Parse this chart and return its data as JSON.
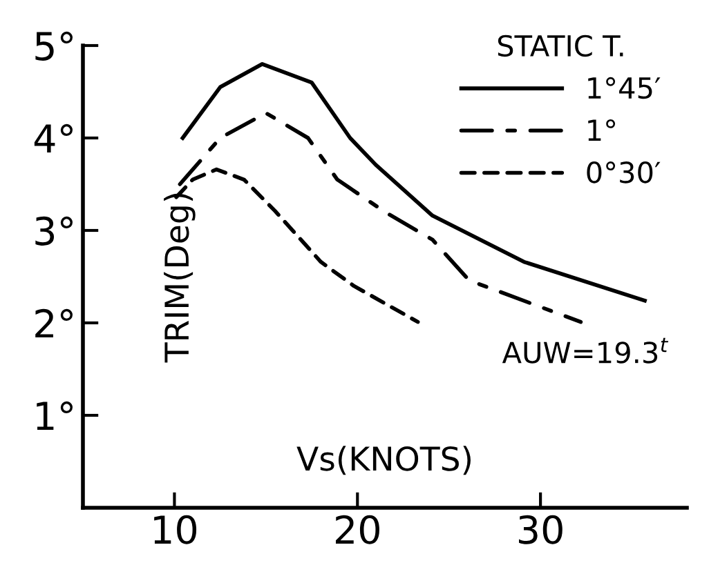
{
  "chart_data": {
    "type": "line",
    "xlabel": "Vs(KNOTS)",
    "ylabel": "TRIM(Deg)",
    "legend_title": "STATIC T.",
    "legend": "top right",
    "grid": false,
    "marker": "none",
    "xlim": [
      5,
      38
    ],
    "xticks": [
      10,
      20,
      30
    ],
    "ylim": [
      0,
      5
    ],
    "yticks": [
      {
        "value": 1,
        "label": "1°"
      },
      {
        "value": 2,
        "label": "2°"
      },
      {
        "value": 3,
        "label": "3°"
      },
      {
        "value": 4,
        "label": "4°"
      },
      {
        "value": 5,
        "label": "5°"
      }
    ],
    "series": [
      {
        "name": "1°45′",
        "color": "#000000",
        "line_style": "solid",
        "x": [
          10.45,
          12.5,
          14.8,
          17.5,
          19.6,
          21.0,
          24.1,
          29.1,
          35.7
        ],
        "values": [
          4.0,
          4.55,
          4.8,
          4.6,
          4.0,
          3.71,
          3.16,
          2.66,
          2.24
        ]
      },
      {
        "name": "1°",
        "color": "#000000",
        "line_style": "dashdot",
        "x": [
          10.3,
          12.5,
          15.0,
          17.3,
          18.9,
          21.5,
          24.1,
          26.1,
          32.2
        ],
        "values": [
          3.5,
          4.0,
          4.27,
          4.0,
          3.55,
          3.2,
          2.9,
          2.46,
          2.01
        ]
      },
      {
        "name": "0°30′",
        "color": "#000000",
        "line_style": "dashed",
        "x": [
          10.1,
          11.0,
          12.3,
          13.8,
          15.5,
          18.0,
          19.8,
          23.3
        ],
        "values": [
          3.36,
          3.55,
          3.66,
          3.55,
          3.21,
          2.66,
          2.4,
          2.01
        ]
      }
    ],
    "annotations": [
      "AUW=19.3$^{t}$"
    ]
  }
}
